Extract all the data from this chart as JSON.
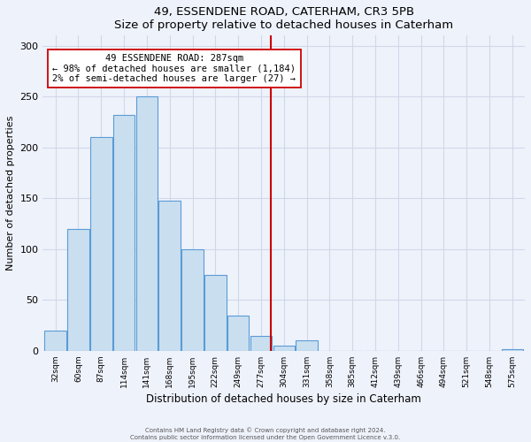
{
  "title": "49, ESSENDENE ROAD, CATERHAM, CR3 5PB",
  "subtitle": "Size of property relative to detached houses in Caterham",
  "xlabel": "Distribution of detached houses by size in Caterham",
  "ylabel": "Number of detached properties",
  "bar_labels": [
    "32sqm",
    "60sqm",
    "87sqm",
    "114sqm",
    "141sqm",
    "168sqm",
    "195sqm",
    "222sqm",
    "249sqm",
    "277sqm",
    "304sqm",
    "331sqm",
    "358sqm",
    "385sqm",
    "412sqm",
    "439sqm",
    "466sqm",
    "494sqm",
    "521sqm",
    "548sqm",
    "575sqm"
  ],
  "bar_values": [
    20,
    120,
    210,
    232,
    250,
    148,
    100,
    75,
    35,
    15,
    5,
    10,
    0,
    0,
    0,
    0,
    0,
    0,
    0,
    0,
    2
  ],
  "bar_color": "#c9dff0",
  "bar_edge_color": "#5b9bd5",
  "vline_x_index": 9.43,
  "vline_color": "#cc0000",
  "annotation_title": "49 ESSENDENE ROAD: 287sqm",
  "annotation_line1": "← 98% of detached houses are smaller (1,184)",
  "annotation_line2": "2% of semi-detached houses are larger (27) →",
  "annotation_box_facecolor": "#ffffff",
  "annotation_box_edgecolor": "#cc0000",
  "ylim": [
    0,
    310
  ],
  "yticks": [
    0,
    50,
    100,
    150,
    200,
    250,
    300
  ],
  "footer_line1": "Contains HM Land Registry data © Crown copyright and database right 2024.",
  "footer_line2": "Contains public sector information licensed under the Open Government Licence v.3.0.",
  "background_color": "#eef2fb",
  "grid_color": "#d0d8e8",
  "spine_color": "#c0c8d8"
}
